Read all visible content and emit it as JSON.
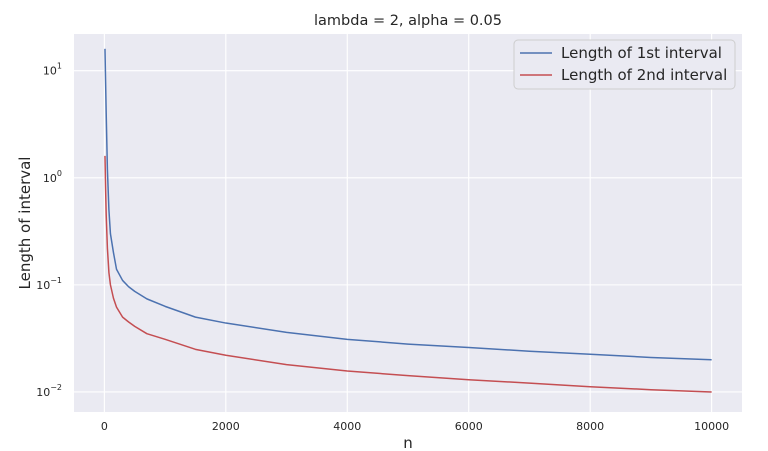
{
  "chart_data": {
    "type": "line",
    "title": "lambda = 2, alpha = 0.05",
    "xlabel": "n",
    "ylabel": "Length of interval",
    "xlim": [
      -500,
      10500
    ],
    "ylim": [
      0.0065,
      22
    ],
    "yscale": "log",
    "grid": true,
    "legend_position": "top-right",
    "x_ticks": [
      0,
      2000,
      4000,
      6000,
      8000,
      10000
    ],
    "x_tick_labels": [
      "0",
      "2000",
      "4000",
      "6000",
      "8000",
      "10000"
    ],
    "y_ticks": [
      0.01,
      0.1,
      1,
      10
    ],
    "y_tick_labels": [
      {
        "base": "10",
        "exp": "−2"
      },
      {
        "base": "10",
        "exp": "−1"
      },
      {
        "base": "10",
        "exp": "0"
      },
      {
        "base": "10",
        "exp": "1"
      }
    ],
    "series": [
      {
        "name": "Length of 1st interval",
        "color": "#4c72b0",
        "x": [
          10,
          20,
          30,
          50,
          75,
          100,
          150,
          200,
          300,
          400,
          500,
          700,
          1000,
          1500,
          2000,
          3000,
          4000,
          5000,
          6000,
          7000,
          8000,
          9000,
          10000
        ],
        "y": [
          16,
          8,
          4,
          1.2,
          0.5,
          0.3,
          0.2,
          0.14,
          0.11,
          0.096,
          0.087,
          0.074,
          0.063,
          0.05,
          0.044,
          0.036,
          0.031,
          0.028,
          0.026,
          0.024,
          0.0225,
          0.021,
          0.02
        ]
      },
      {
        "name": "Length of 2nd interval",
        "color": "#c44e52",
        "x": [
          10,
          20,
          30,
          50,
          75,
          100,
          150,
          200,
          300,
          400,
          500,
          700,
          1000,
          1500,
          2000,
          3000,
          4000,
          5000,
          6000,
          7000,
          8000,
          9000,
          10000
        ],
        "y": [
          1.6,
          0.8,
          0.45,
          0.22,
          0.13,
          0.1,
          0.075,
          0.062,
          0.05,
          0.045,
          0.041,
          0.035,
          0.031,
          0.025,
          0.022,
          0.018,
          0.0157,
          0.0142,
          0.013,
          0.0121,
          0.0112,
          0.0105,
          0.01
        ]
      }
    ]
  }
}
